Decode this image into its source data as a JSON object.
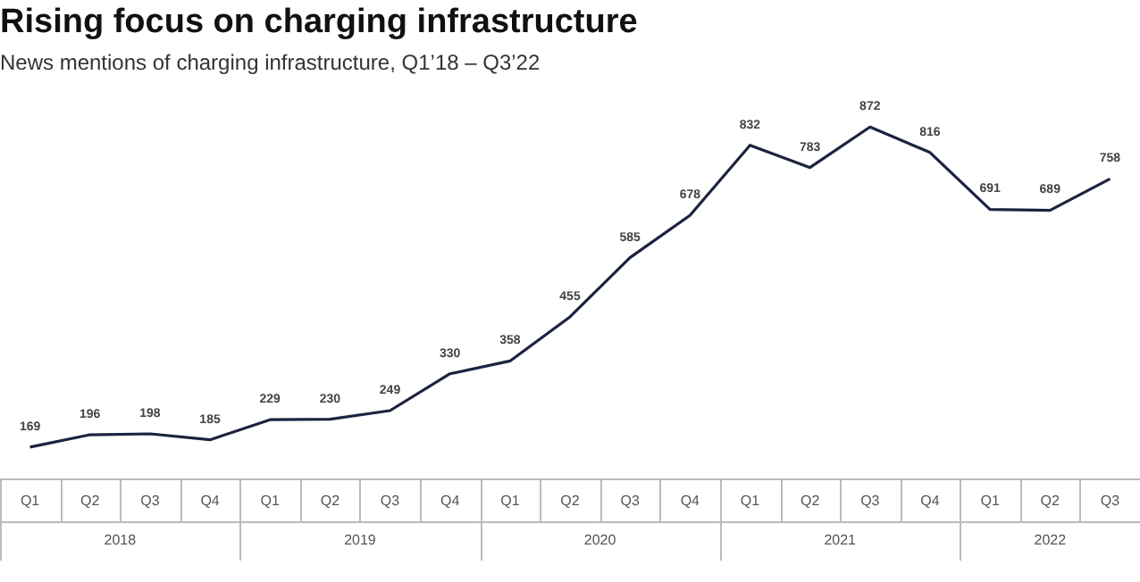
{
  "chart_data": {
    "type": "line",
    "title": "Rising focus on charging infrastructure",
    "subtitle": "News mentions of charging infrastructure, Q1’18 – Q3’22",
    "categories": [
      "Q1",
      "Q2",
      "Q3",
      "Q4",
      "Q1",
      "Q2",
      "Q3",
      "Q4",
      "Q1",
      "Q2",
      "Q3",
      "Q4",
      "Q1",
      "Q2",
      "Q3",
      "Q4",
      "Q1",
      "Q2",
      "Q3"
    ],
    "values": [
      169,
      196,
      198,
      185,
      229,
      230,
      249,
      330,
      358,
      455,
      585,
      678,
      832,
      783,
      872,
      816,
      691,
      689,
      758
    ],
    "color": "#1c2340",
    "data_labels": true,
    "marker": "none",
    "line_style": "solid",
    "annotations": [
      "2018",
      "2019",
      "2020",
      "2021",
      "2022"
    ]
  }
}
